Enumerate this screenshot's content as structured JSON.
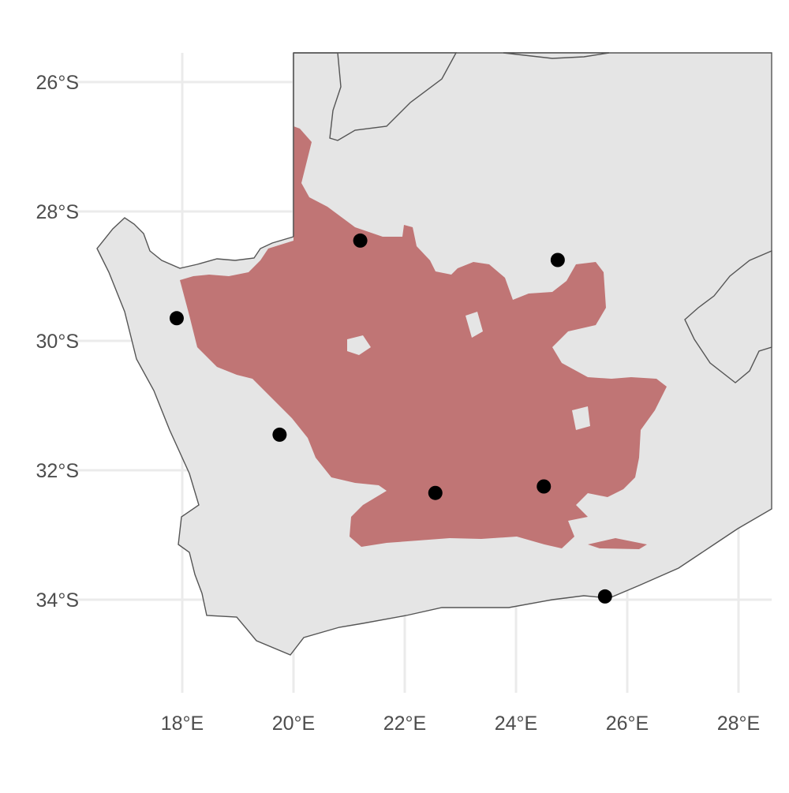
{
  "chart_data": {
    "type": "scatter",
    "title": "",
    "xlabel": "",
    "ylabel": "",
    "xlim": [
      16.5,
      28.5
    ],
    "ylim": [
      -35.3,
      -25.5
    ],
    "grid": true,
    "x_ticks": [
      {
        "value": 18,
        "label": "18°E"
      },
      {
        "value": 20,
        "label": "20°E"
      },
      {
        "value": 22,
        "label": "22°E"
      },
      {
        "value": 24,
        "label": "24°E"
      },
      {
        "value": 26,
        "label": "26°E"
      },
      {
        "value": 28,
        "label": "28°E"
      }
    ],
    "y_ticks": [
      {
        "value": -26,
        "label": "26°S"
      },
      {
        "value": -28,
        "label": "28°S"
      },
      {
        "value": -30,
        "label": "30°S"
      },
      {
        "value": -32,
        "label": "32°S"
      },
      {
        "value": -34,
        "label": "34°S"
      }
    ],
    "points": [
      {
        "x": 17.9,
        "y": -29.65
      },
      {
        "x": 21.2,
        "y": -28.45
      },
      {
        "x": 24.75,
        "y": -28.75
      },
      {
        "x": 19.75,
        "y": -31.45
      },
      {
        "x": 22.55,
        "y": -32.35
      },
      {
        "x": 24.5,
        "y": -32.25
      },
      {
        "x": 25.6,
        "y": -33.95
      }
    ],
    "colors": {
      "land": "#e5e5e5",
      "border": "#555555",
      "region": "#c07575",
      "points": "#000000",
      "grid": "#ebebeb"
    }
  }
}
